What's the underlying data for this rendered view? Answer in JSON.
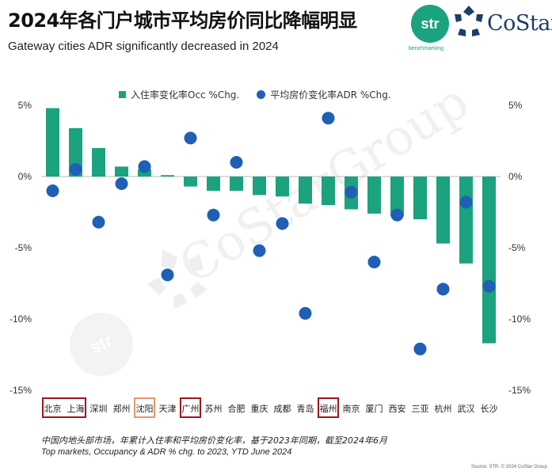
{
  "title": "2024年各门户城市平均房价同比降幅明显",
  "subtitle": "Gateway cities ADR significantly decreased in 2024",
  "logos": {
    "str_mark": "str",
    "str_sub": "benchmarking",
    "costar": "CoStar",
    "costar_tm": "TM",
    "watermark_text": "CoStarGroup",
    "accent_green": "#1aa37e",
    "accent_blue": "#1d3d6b"
  },
  "legend": {
    "occ": "入住率变化率Occ %Chg.",
    "adr": "平均房价变化率ADR %Chg."
  },
  "footnotes": {
    "line1": "中国内地头部市场，年累计入住率和平均房价变化率，基于2023年同期，截至2024年6月",
    "line2": "Top markets, Occupancy & ADR % chg. to 2023, YTD June 2024",
    "source": "Source: STR. © 2024 CoStar Group"
  },
  "chart_data": {
    "type": "bar",
    "categories": [
      "北京",
      "上海",
      "深圳",
      "郑州",
      "沈阳",
      "天津",
      "广州",
      "苏州",
      "合肥",
      "重庆",
      "成都",
      "青岛",
      "福州",
      "南京",
      "厦门",
      "西安",
      "三亚",
      "杭州",
      "武汉",
      "长沙"
    ],
    "series": [
      {
        "name": "入住率变化率Occ %Chg.",
        "type": "bar",
        "color": "#1aa37e",
        "values": [
          4.8,
          3.4,
          2.0,
          0.7,
          0.5,
          0.1,
          -0.7,
          -1.0,
          -1.0,
          -1.3,
          -1.4,
          -1.9,
          -2.0,
          -2.3,
          -2.6,
          -2.8,
          -3.0,
          -4.7,
          -6.1,
          -11.7
        ]
      },
      {
        "name": "平均房价变化率ADR %Chg.",
        "type": "scatter",
        "color": "#1f5fb5",
        "values": [
          -1.0,
          0.5,
          -3.2,
          -0.5,
          0.7,
          -6.9,
          2.7,
          -2.7,
          1.0,
          -5.2,
          -3.3,
          -9.6,
          4.1,
          -1.1,
          -6.0,
          -2.7,
          -12.1,
          -7.9,
          -1.8,
          -7.7
        ]
      }
    ],
    "ylim": [
      -15,
      5
    ],
    "yticks": [
      "5%",
      "0%",
      "-5%",
      "-10%",
      "-15%"
    ],
    "highlight": {
      "red": [
        0,
        1,
        6,
        12
      ],
      "orange": [
        4
      ]
    },
    "highlight_colors": {
      "red": "#a0141e",
      "orange": "#e8956b"
    }
  }
}
